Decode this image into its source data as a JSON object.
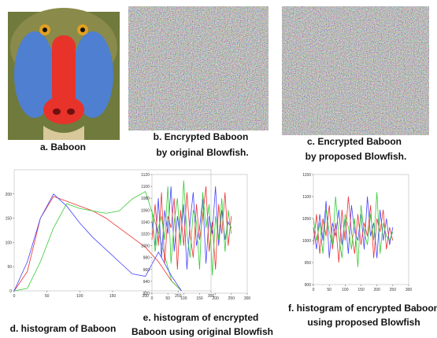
{
  "figure": {
    "images": [
      {
        "caption": [
          "a.   Baboon"
        ]
      },
      {
        "caption": [
          "b. Encrypted Baboon",
          "by original Blowfish."
        ]
      },
      {
        "caption": [
          "c. Encrypted Baboon",
          "by proposed Blowfish."
        ]
      }
    ],
    "histograms": [
      {
        "caption": [
          "d. histogram of Baboon"
        ],
        "x": [
          0,
          20,
          40,
          60,
          80,
          100,
          120,
          140,
          160,
          180,
          200,
          220,
          240,
          255
        ],
        "xlim": [
          0,
          300
        ],
        "ylim": [
          0,
          250
        ],
        "xticks": [
          0,
          50,
          100,
          150,
          200,
          250,
          300
        ],
        "yticks": [
          0,
          50,
          100,
          150,
          200
        ],
        "series": [
          {
            "color": "#e33",
            "values": [
              0,
              40,
              150,
              195,
              185,
              175,
              165,
              150,
              130,
              110,
              90,
              60,
              20,
              0
            ]
          },
          {
            "color": "#3c3",
            "values": [
              0,
              5,
              60,
              130,
              180,
              170,
              165,
              160,
              165,
              190,
              205,
              120,
              20,
              0
            ]
          },
          {
            "color": "#44f",
            "values": [
              0,
              60,
              150,
              200,
              175,
              140,
              110,
              85,
              60,
              35,
              30,
              80,
              30,
              0
            ]
          }
        ]
      },
      {
        "caption": [
          "e. histogram of encrypted",
          "Baboon using original Blowfish"
        ],
        "x": [
          0,
          10,
          20,
          30,
          40,
          50,
          60,
          70,
          80,
          90,
          100,
          110,
          120,
          130,
          140,
          150,
          160,
          170,
          180,
          190,
          200,
          210,
          220,
          230,
          240,
          250
        ],
        "xlim": [
          0,
          300
        ],
        "ylim": [
          920,
          1120
        ],
        "xticks": [
          0,
          50,
          100,
          150,
          200,
          250,
          300
        ],
        "yticks": [
          920,
          940,
          960,
          980,
          1000,
          1020,
          1040,
          1060,
          1080,
          1100,
          1120
        ],
        "series": [
          {
            "color": "#44f",
            "values": [
              1040,
              1000,
              1080,
              980,
              1060,
              1020,
              1100,
              990,
              1050,
              1010,
              1070,
              960,
              1040,
              1090,
              1000,
              1030,
              1080,
              970,
              1050,
              1020,
              1100,
              1000,
              1060,
              1010,
              1040,
              1030
            ]
          },
          {
            "color": "#e33",
            "values": [
              1010,
              1070,
              1000,
              1090,
              970,
              1050,
              1030,
              1080,
              960,
              1060,
              1000,
              1090,
              1020,
              980,
              1070,
              1010,
              1050,
              1100,
              990,
              1040,
              960,
              1070,
              1020,
              1090,
              1000,
              1050
            ]
          },
          {
            "color": "#3c3",
            "values": [
              1060,
              990,
              1030,
              1050,
              1010,
              1100,
              970,
              1040,
              1080,
              1000,
              1110,
              1020,
              980,
              1060,
              1040,
              960,
              1090,
              1030,
              1070,
              950,
              1050,
              1010,
              1080,
              990,
              1060,
              1020
            ]
          }
        ]
      },
      {
        "caption": [
          "f. histogram of encrypted Baboon",
          "using proposed Blowfish"
        ],
        "x": [
          0,
          10,
          20,
          30,
          40,
          50,
          60,
          70,
          80,
          90,
          100,
          110,
          120,
          130,
          140,
          150,
          160,
          170,
          180,
          190,
          200,
          210,
          220,
          230,
          240,
          250
        ],
        "xlim": [
          0,
          300
        ],
        "ylim": [
          900,
          1150
        ],
        "xticks": [
          0,
          50,
          100,
          150,
          200,
          250,
          300
        ],
        "yticks": [
          900,
          950,
          1000,
          1050,
          1100,
          1150
        ],
        "series": [
          {
            "color": "#44f",
            "values": [
              1030,
              980,
              1060,
              1000,
              1090,
              960,
              1040,
              1010,
              1070,
              990,
              1050,
              970,
              1080,
              1020,
              1000,
              1060,
              980,
              1100,
              1010,
              1040,
              960,
              1070,
              1000,
              1050,
              990,
              1030
            ]
          },
          {
            "color": "#e33",
            "values": [
              990,
              1060,
              970,
              1050,
              1010,
              1080,
              980,
              1040,
              950,
              1070,
              1000,
              1100,
              1020,
              970,
              1060,
              990,
              1040,
              1010,
              1080,
              960,
              1050,
              1020,
              1070,
              980,
              1030,
              1000
            ]
          },
          {
            "color": "#3c3",
            "values": [
              1050,
              1000,
              1040,
              970,
              1070,
              1020,
              990,
              1100,
              1010,
              960,
              1060,
              1030,
              980,
              1050,
              940,
              1080,
              1020,
              990,
              1060,
              1000,
              1110,
              970,
              1040,
              1010,
              1000,
              1020
            ]
          }
        ]
      }
    ]
  }
}
